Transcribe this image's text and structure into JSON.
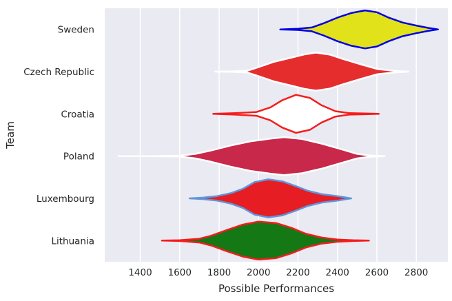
{
  "chart_data": {
    "type": "violin",
    "orientation": "horizontal",
    "xlabel": "Possible Performances",
    "ylabel": "Team",
    "xlim": [
      1220,
      2960
    ],
    "xticks": [
      1400,
      1600,
      1800,
      2000,
      2200,
      2400,
      2600,
      2800
    ],
    "grid": true,
    "background": "#eaeaf2",
    "categories": [
      "Sweden",
      "Czech Republic",
      "Croatia",
      "Poland",
      "Luxembourg",
      "Lithuania"
    ],
    "series": [
      {
        "team": "Sweden",
        "fill": "#e2e21a",
        "line": "#0000e6",
        "profile": [
          [
            2110,
            0.0
          ],
          [
            2200,
            0.03
          ],
          [
            2270,
            0.1
          ],
          [
            2330,
            0.32
          ],
          [
            2400,
            0.62
          ],
          [
            2470,
            0.86
          ],
          [
            2540,
            1.0
          ],
          [
            2600,
            0.9
          ],
          [
            2660,
            0.62
          ],
          [
            2730,
            0.36
          ],
          [
            2800,
            0.2
          ],
          [
            2860,
            0.08
          ],
          [
            2910,
            0.0
          ]
        ]
      },
      {
        "team": "Czech Republic",
        "fill": "#e62d2d",
        "line": "#ffffff",
        "profile": [
          [
            1780,
            0.0
          ],
          [
            1860,
            0.01
          ],
          [
            1940,
            0.04
          ],
          [
            2000,
            0.24
          ],
          [
            2080,
            0.52
          ],
          [
            2160,
            0.72
          ],
          [
            2230,
            0.9
          ],
          [
            2290,
            1.0
          ],
          [
            2360,
            0.9
          ],
          [
            2430,
            0.66
          ],
          [
            2520,
            0.38
          ],
          [
            2600,
            0.14
          ],
          [
            2680,
            0.05
          ],
          [
            2760,
            0.0
          ]
        ]
      },
      {
        "team": "Croatia",
        "fill": "#ffffff",
        "line": "#f51c1c",
        "profile": [
          [
            1770,
            0.0
          ],
          [
            1880,
            0.04
          ],
          [
            1990,
            0.1
          ],
          [
            2060,
            0.34
          ],
          [
            2120,
            0.72
          ],
          [
            2190,
            1.0
          ],
          [
            2260,
            0.84
          ],
          [
            2320,
            0.45
          ],
          [
            2390,
            0.14
          ],
          [
            2460,
            0.04
          ],
          [
            2540,
            0.02
          ],
          [
            2610,
            0.0
          ]
        ]
      },
      {
        "team": "Poland",
        "fill": "#c8284a",
        "line": "#ffffff",
        "profile": [
          [
            1290,
            0.0
          ],
          [
            1450,
            0.0
          ],
          [
            1600,
            0.02
          ],
          [
            1680,
            0.12
          ],
          [
            1760,
            0.3
          ],
          [
            1860,
            0.56
          ],
          [
            1960,
            0.78
          ],
          [
            2060,
            0.92
          ],
          [
            2130,
            1.0
          ],
          [
            2220,
            0.9
          ],
          [
            2320,
            0.66
          ],
          [
            2420,
            0.36
          ],
          [
            2500,
            0.12
          ],
          [
            2560,
            0.04
          ],
          [
            2640,
            0.0
          ]
        ]
      },
      {
        "team": "Luxembourg",
        "fill": "#e61e23",
        "line": "#5f96dc",
        "profile": [
          [
            1650,
            0.0
          ],
          [
            1720,
            0.04
          ],
          [
            1790,
            0.12
          ],
          [
            1860,
            0.28
          ],
          [
            1920,
            0.5
          ],
          [
            1980,
            0.86
          ],
          [
            2050,
            1.0
          ],
          [
            2120,
            0.9
          ],
          [
            2190,
            0.64
          ],
          [
            2250,
            0.4
          ],
          [
            2320,
            0.22
          ],
          [
            2400,
            0.12
          ],
          [
            2470,
            0.0
          ]
        ]
      },
      {
        "team": "Lithuania",
        "fill": "#147814",
        "line": "#f51c1c",
        "profile": [
          [
            1510,
            0.0
          ],
          [
            1600,
            0.02
          ],
          [
            1700,
            0.1
          ],
          [
            1760,
            0.26
          ],
          [
            1840,
            0.56
          ],
          [
            1920,
            0.84
          ],
          [
            2000,
            1.0
          ],
          [
            2090,
            0.92
          ],
          [
            2170,
            0.66
          ],
          [
            2240,
            0.36
          ],
          [
            2320,
            0.16
          ],
          [
            2400,
            0.06
          ],
          [
            2480,
            0.02
          ],
          [
            2560,
            0.0
          ]
        ]
      }
    ]
  }
}
